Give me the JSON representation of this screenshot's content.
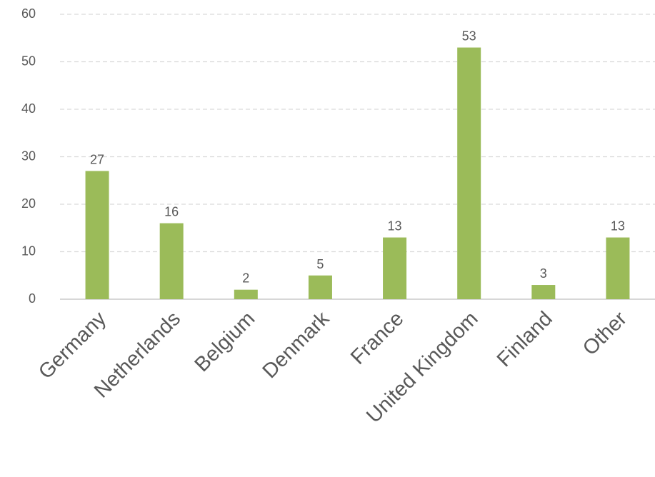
{
  "chart_data": {
    "type": "bar",
    "categories": [
      "Germany",
      "Netherlands",
      "Belgium",
      "Denmark",
      "France",
      "United Kingdom",
      "Finland",
      "Other"
    ],
    "values": [
      27,
      16,
      2,
      5,
      13,
      53,
      3,
      13
    ],
    "color": "#9bbb59",
    "ylim": [
      0,
      60
    ],
    "yticks": [
      0,
      10,
      20,
      30,
      40,
      50,
      60
    ],
    "grid": true,
    "data_labels": true
  }
}
